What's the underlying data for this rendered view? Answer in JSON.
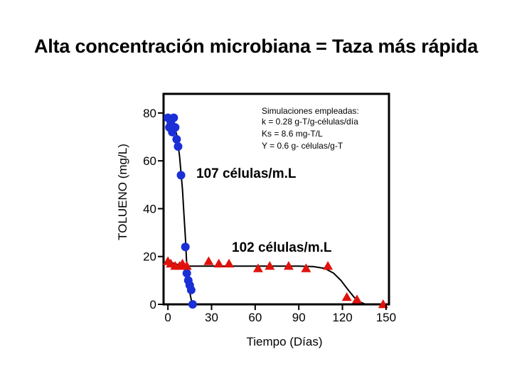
{
  "title": "Alta concentración microbiana = Taza más rápida",
  "chart_data": {
    "type": "scatter",
    "xlabel": "Tiempo (Días)",
    "ylabel": "TOLUENO (mg/L)",
    "xlim": [
      -3,
      152
    ],
    "ylim": [
      0,
      88
    ],
    "xticks": [
      0,
      30,
      60,
      90,
      120,
      150
    ],
    "yticks": [
      0,
      20,
      40,
      60,
      80
    ],
    "grid": false,
    "legend": "none",
    "series": [
      {
        "marker": "circle",
        "color": "#1a2fd6",
        "points": [
          [
            0,
            78
          ],
          [
            2,
            76
          ],
          [
            4,
            78
          ],
          [
            1,
            74
          ],
          [
            5,
            74
          ],
          [
            3,
            72
          ],
          [
            6,
            69
          ],
          [
            7,
            66
          ],
          [
            9,
            54
          ],
          [
            12,
            24
          ],
          [
            13,
            13
          ],
          [
            14,
            10
          ],
          [
            15,
            8
          ],
          [
            16,
            6
          ],
          [
            17,
            0
          ]
        ],
        "curve": [
          [
            0,
            78
          ],
          [
            2,
            77
          ],
          [
            4,
            76
          ],
          [
            6,
            71
          ],
          [
            8,
            62
          ],
          [
            10,
            48
          ],
          [
            11,
            38
          ],
          [
            12,
            28
          ],
          [
            13,
            16
          ],
          [
            14,
            10
          ],
          [
            15,
            5
          ],
          [
            16,
            2
          ],
          [
            17,
            0
          ]
        ]
      },
      {
        "marker": "triangle",
        "color": "#e0120c",
        "points": [
          [
            0,
            18
          ],
          [
            2,
            17
          ],
          [
            5,
            16
          ],
          [
            8,
            16
          ],
          [
            10,
            17
          ],
          [
            13,
            16
          ],
          [
            28,
            18
          ],
          [
            35,
            17
          ],
          [
            42,
            17
          ],
          [
            62,
            15
          ],
          [
            70,
            16
          ],
          [
            83,
            16
          ],
          [
            95,
            15
          ],
          [
            110,
            16
          ],
          [
            123,
            3
          ],
          [
            130,
            2
          ],
          [
            148,
            0
          ]
        ],
        "curve": [
          [
            0,
            18
          ],
          [
            5,
            17
          ],
          [
            10,
            16
          ],
          [
            13,
            16
          ],
          [
            30,
            16
          ],
          [
            60,
            16
          ],
          [
            90,
            16
          ],
          [
            100,
            15.8
          ],
          [
            108,
            15
          ],
          [
            114,
            13
          ],
          [
            119,
            10
          ],
          [
            124,
            6
          ],
          [
            128,
            3
          ],
          [
            132,
            1
          ],
          [
            136,
            0
          ]
        ]
      }
    ],
    "annotations": {
      "note_lines": [
        "Simulaciones empleadas:",
        "k = 0.28 g-T/g-células/día",
        "Ks = 8.6 mg-T/L",
        "Y = 0.6 g- células/g-T"
      ],
      "high_label": "107 células/m.L",
      "low_label": "102 células/m.L"
    }
  }
}
